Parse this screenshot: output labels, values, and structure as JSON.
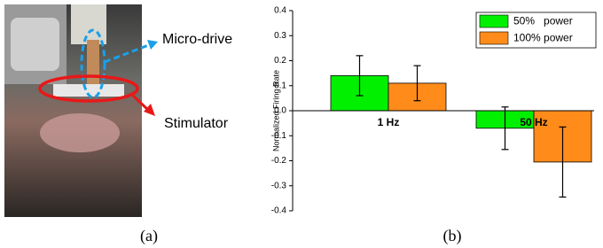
{
  "panel_a": {
    "labels": [
      "Micro-drive",
      "Stimulator"
    ],
    "caption": "(a)"
  },
  "chart_data": {
    "type": "bar",
    "caption": "(b)",
    "y_label": "Normalized Firing Rate",
    "categories": [
      "1 Hz",
      "50 Hz"
    ],
    "series": [
      {
        "name": "50%   power",
        "color": "#00f000",
        "values": [
          0.14,
          -0.07
        ],
        "errors": [
          0.08,
          0.085
        ]
      },
      {
        "name": "100% power",
        "color": "#ff8c1a",
        "values": [
          0.11,
          -0.205
        ],
        "errors": [
          0.07,
          0.14
        ]
      }
    ],
    "ylim": [
      -0.4,
      0.4
    ],
    "yticks": [
      -0.4,
      -0.3,
      -0.2,
      -0.1,
      {
        "value": 0,
        "label": "0.0"
      },
      0.1,
      0.2,
      0.3,
      0.4
    ],
    "legend": "top-right"
  }
}
